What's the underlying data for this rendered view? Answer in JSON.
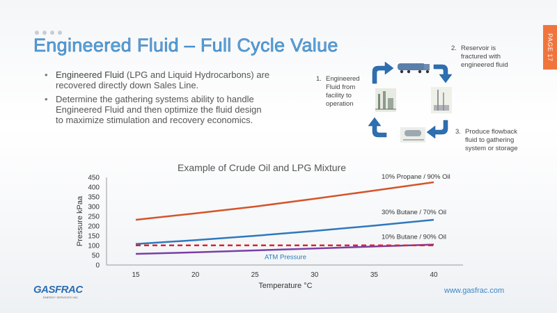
{
  "slide": {
    "title": "Engineered Fluid – Full Cycle Value",
    "page_label": "PAGE 17",
    "bullets": [
      {
        "highlight": "Engineered Fluid",
        "text": " (LPG and Liquid Hydrocarbons) are recovered directly down Sales Line."
      },
      {
        "highlight": "",
        "text": "Determine the gathering systems ability to handle Engineered Fluid and then optimize the fluid design to maximize stimulation and recovery economics."
      }
    ],
    "steps": [
      {
        "num": "1.",
        "text": "Engineered Fluid from facility to operation"
      },
      {
        "num": "2.",
        "text": "Reservoir is fractured with engineered fluid"
      },
      {
        "num": "3.",
        "text": "Produce flowback fluid to gathering system or storage"
      }
    ],
    "cycle_icons": [
      "tanker-truck-icon",
      "frac-rig-icon",
      "storage-tank-icon",
      "facility-icon"
    ],
    "footer_url": "www.gasfrac.com",
    "logo": {
      "text": "GASFRAC",
      "sub": "ENERGY SERVICES INC."
    }
  },
  "chart_data": {
    "type": "line",
    "title": "Example of Crude Oil and LPG Mixture",
    "xlabel": "Temperature   °C",
    "ylabel": "Pressure kPaa",
    "xlim": [
      15,
      40
    ],
    "ylim": [
      0,
      450
    ],
    "x_ticks": [
      15,
      20,
      25,
      30,
      35,
      40
    ],
    "y_ticks": [
      0,
      50,
      100,
      150,
      200,
      250,
      300,
      350,
      400,
      450
    ],
    "grid": false,
    "series": [
      {
        "name": "10% Propane / 90% Oil",
        "color": "#d5542a",
        "dashed": false,
        "x": [
          15,
          20,
          25,
          30,
          35,
          40
        ],
        "y": [
          232,
          265,
          300,
          340,
          382,
          425
        ]
      },
      {
        "name": "30% Butane / 70% Oil",
        "color": "#2e78bd",
        "dashed": false,
        "x": [
          15,
          20,
          25,
          30,
          35,
          40
        ],
        "y": [
          108,
          128,
          150,
          175,
          202,
          232
        ]
      },
      {
        "name": "10% Butane / 90% Oil",
        "color": "#7a3ea5",
        "dashed": false,
        "x": [
          15,
          20,
          25,
          30,
          35,
          40
        ],
        "y": [
          57,
          65,
          75,
          85,
          95,
          105
        ]
      },
      {
        "name": "ATM Pressure",
        "color": "#d9262e",
        "dashed": true,
        "x": [
          15,
          40
        ],
        "y": [
          101,
          101
        ]
      }
    ]
  }
}
